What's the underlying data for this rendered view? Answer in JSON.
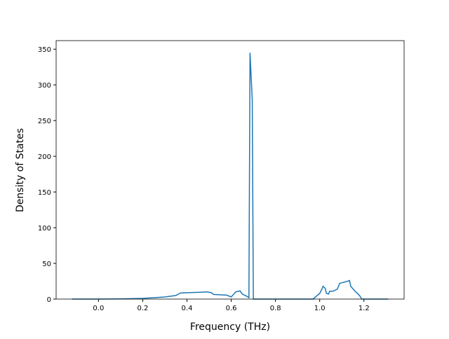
{
  "chart_data": {
    "type": "line",
    "xlabel": "Frequency (THz)",
    "ylabel": "Density of States",
    "x": [
      -0.12,
      0.0,
      0.1,
      0.2,
      0.3,
      0.35,
      0.37,
      0.4,
      0.45,
      0.49,
      0.51,
      0.52,
      0.55,
      0.58,
      0.6,
      0.62,
      0.64,
      0.65,
      0.67,
      0.68,
      0.685,
      0.695,
      0.7,
      0.75,
      0.97,
      1.0,
      1.01,
      1.015,
      1.025,
      1.03,
      1.04,
      1.045,
      1.06,
      1.08,
      1.09,
      1.12,
      1.135,
      1.14,
      1.16,
      1.18,
      1.19,
      1.25,
      1.31
    ],
    "series": [
      {
        "color": "#1f77b4",
        "values": [
          0,
          0,
          0.2,
          1,
          3,
          5,
          8.5,
          9,
          9.5,
          10,
          9,
          6.5,
          6,
          5.5,
          3,
          10,
          11.5,
          7,
          4,
          2,
          345,
          280,
          0,
          0,
          0,
          8,
          14,
          18,
          15,
          8,
          7,
          11,
          11,
          14,
          22,
          24.5,
          26,
          18,
          11,
          5,
          0,
          0,
          0
        ]
      }
    ],
    "xlim": [
      -0.1915,
      1.3815
    ],
    "ylim": [
      0,
      362
    ],
    "xticks": [
      {
        "value": 0.0,
        "label": "0.0"
      },
      0.2,
      0.4,
      0.6,
      0.8,
      {
        "value": 1.0,
        "label": "1.0"
      },
      1.2
    ],
    "yticks": [
      0,
      50,
      100,
      150,
      200,
      250,
      300,
      350
    ]
  }
}
